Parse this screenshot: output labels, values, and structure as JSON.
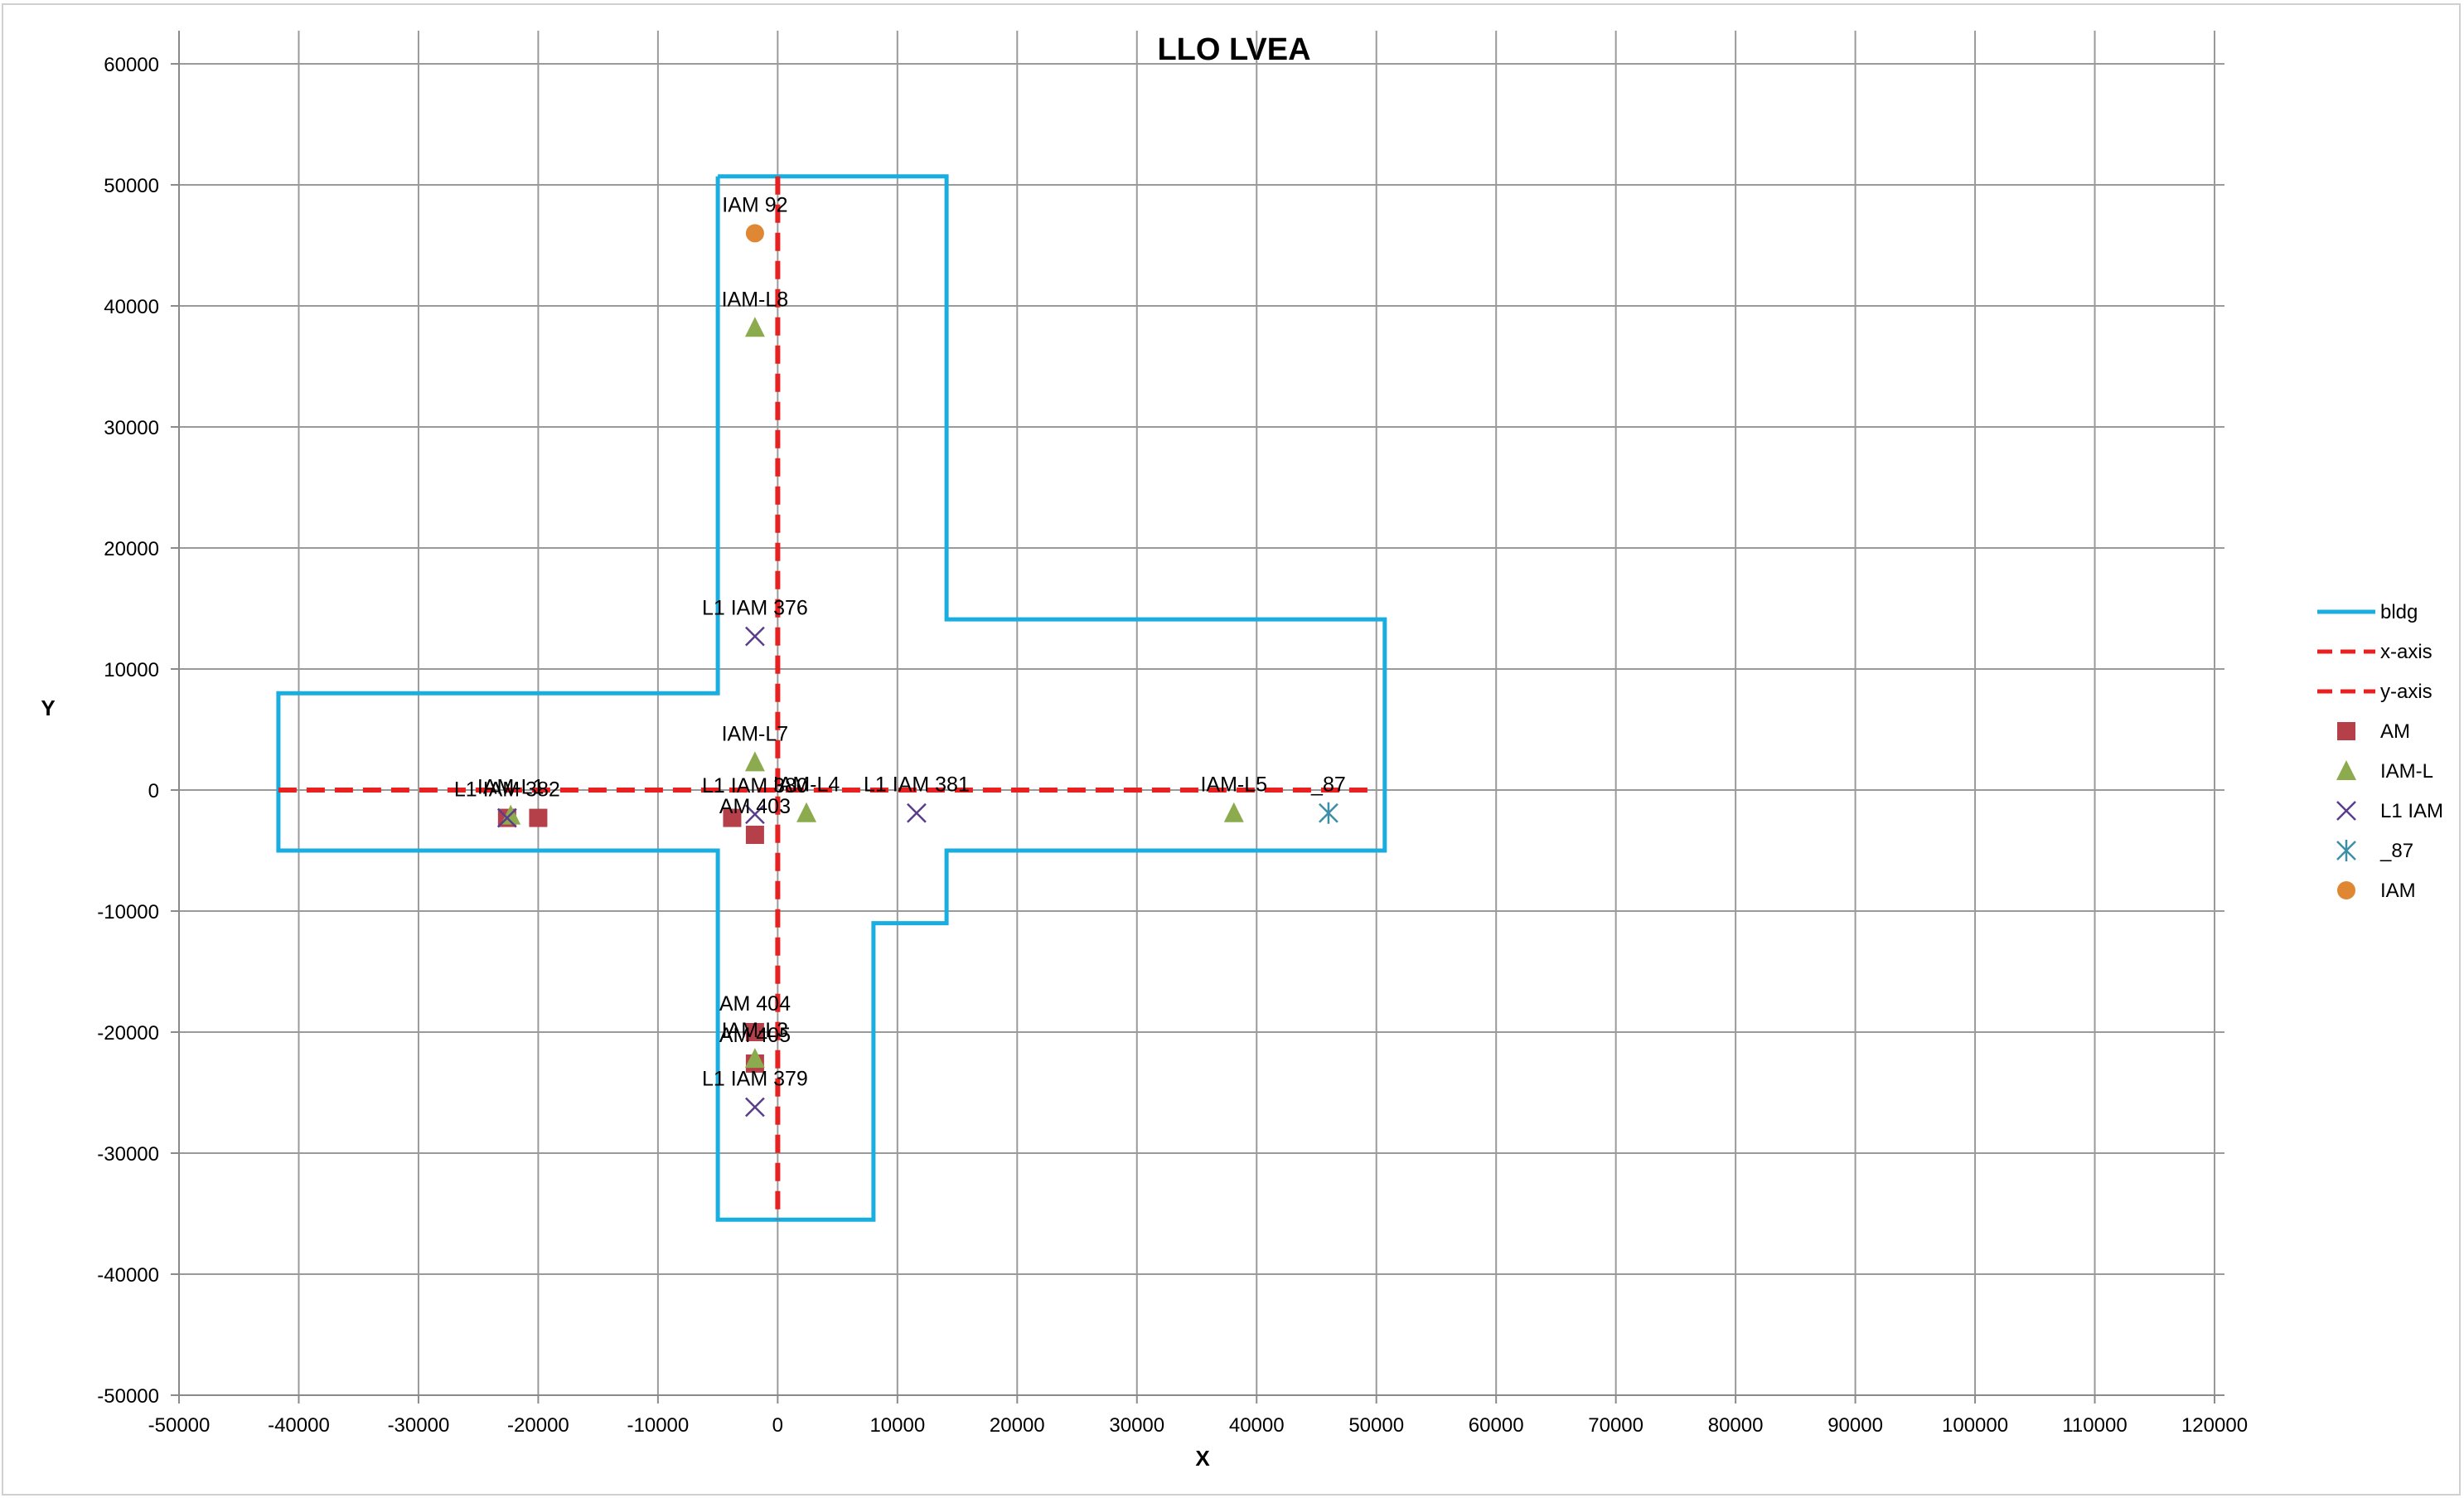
{
  "chart_data": {
    "type": "scatter",
    "title": "LLO LVEA",
    "xlabel": "X",
    "ylabel": "Y",
    "xlim": [
      -50000,
      120000
    ],
    "ylim": [
      -50000,
      60000
    ],
    "xticks": [
      -50000,
      -40000,
      -30000,
      -20000,
      -10000,
      0,
      10000,
      20000,
      30000,
      40000,
      50000,
      60000,
      70000,
      80000,
      90000,
      100000,
      110000,
      120000
    ],
    "yticks": [
      -50000,
      -40000,
      -30000,
      -20000,
      -10000,
      0,
      10000,
      20000,
      30000,
      40000,
      50000,
      60000
    ],
    "grid": true,
    "legend_position": "right",
    "series": [
      {
        "name": "bldg",
        "kind": "line",
        "style": "solid",
        "color": "#1aaee0",
        "points": [
          [
            -5000,
            50700
          ],
          [
            14100,
            50700
          ],
          [
            14100,
            14100
          ],
          [
            50700,
            14100
          ],
          [
            50700,
            -5000
          ],
          [
            14100,
            -5000
          ],
          [
            14100,
            -11000
          ],
          [
            8000,
            -11000
          ],
          [
            8000,
            -35500
          ],
          [
            -5000,
            -35500
          ],
          [
            -5000,
            -5000
          ],
          [
            -41700,
            -5000
          ],
          [
            -41700,
            8000
          ],
          [
            -5000,
            8000
          ],
          [
            -5000,
            50700
          ]
        ]
      },
      {
        "name": "x-axis",
        "kind": "line",
        "style": "dashed",
        "color": "#e8201f",
        "points": [
          [
            -41700,
            0
          ],
          [
            50000,
            0
          ]
        ]
      },
      {
        "name": "y-axis",
        "kind": "line",
        "style": "dashed",
        "color": "#e8201f",
        "points": [
          [
            0,
            50700
          ],
          [
            0,
            -35500
          ]
        ]
      },
      {
        "name": "AM",
        "kind": "marker",
        "marker": "square",
        "color": "#b5404a",
        "points": [
          {
            "x": -22600,
            "y": -2300,
            "label": ""
          },
          {
            "x": -20000,
            "y": -2300,
            "label": ""
          },
          {
            "x": -3800,
            "y": -2300,
            "label": ""
          },
          {
            "x": -1900,
            "y": -3700,
            "label": "AM 403"
          },
          {
            "x": -1900,
            "y": -20000,
            "label": "AM 404"
          },
          {
            "x": -1900,
            "y": -22600,
            "label": "AM 405"
          }
        ]
      },
      {
        "name": "IAM-L",
        "kind": "marker",
        "marker": "triangle",
        "color": "#8cab4e",
        "points": [
          {
            "x": -1900,
            "y": 38200,
            "label": "IAM-L8"
          },
          {
            "x": -1900,
            "y": 2300,
            "label": "IAM-L7"
          },
          {
            "x": 2400,
            "y": -1900,
            "label": "IAM-L4"
          },
          {
            "x": 38100,
            "y": -1900,
            "label": "IAM-L5"
          },
          {
            "x": -22300,
            "y": -2100,
            "label": "IAM-L1"
          },
          {
            "x": -1900,
            "y": -22200,
            "label": "IAM-L3"
          }
        ]
      },
      {
        "name": "L1 IAM",
        "kind": "marker",
        "marker": "x",
        "color": "#5a3d8a",
        "points": [
          {
            "x": -1900,
            "y": 12700,
            "label": "L1 IAM 376"
          },
          {
            "x": -1900,
            "y": -2000,
            "label": "L1 IAM 380"
          },
          {
            "x": 11600,
            "y": -1900,
            "label": "L1 IAM 381"
          },
          {
            "x": -22600,
            "y": -2300,
            "label": "L1 IAM 382"
          },
          {
            "x": -1900,
            "y": -26200,
            "label": "L1 IAM 379"
          }
        ]
      },
      {
        "name": "_87",
        "kind": "marker",
        "marker": "asterisk",
        "color": "#3d8fa8",
        "points": [
          {
            "x": 46000,
            "y": -1900,
            "label": "_87"
          }
        ]
      },
      {
        "name": "IAM",
        "kind": "marker",
        "marker": "circle",
        "color": "#e08733",
        "points": [
          {
            "x": -1900,
            "y": 46000,
            "label": "IAM 92"
          }
        ]
      }
    ]
  }
}
